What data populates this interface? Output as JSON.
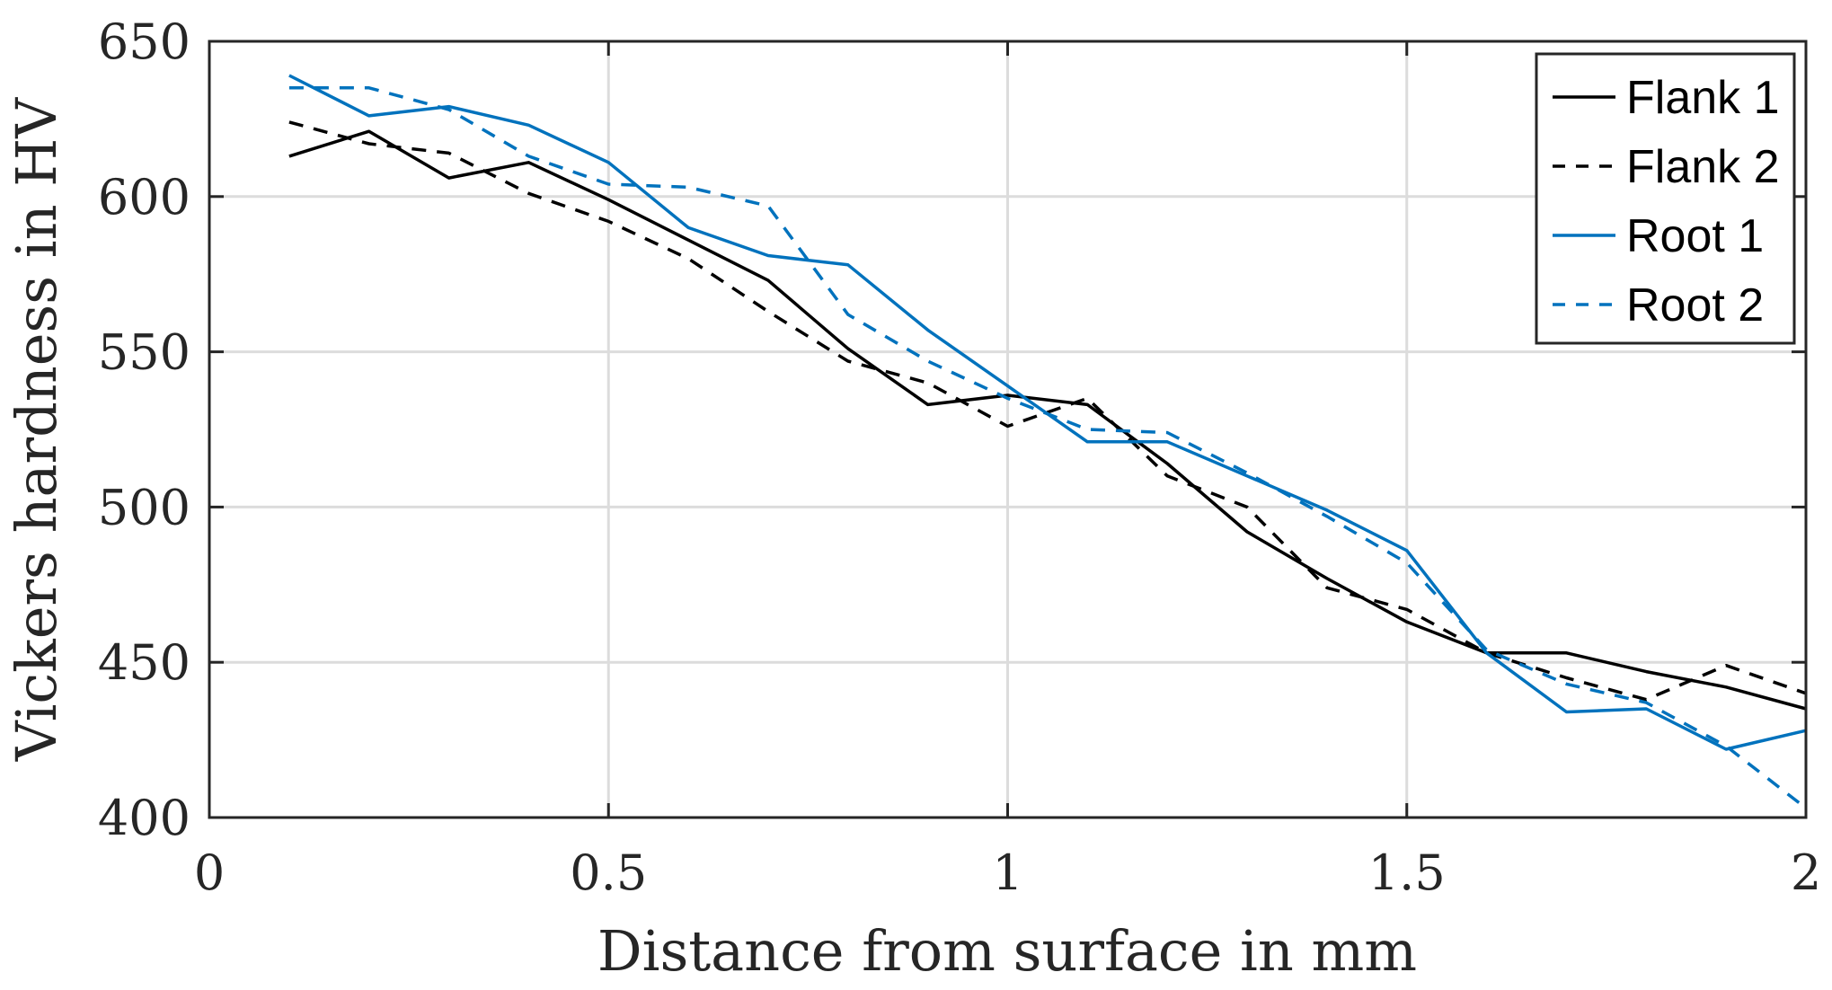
{
  "chart_data": {
    "type": "line",
    "xlabel": "Distance from surface in mm",
    "ylabel": "Vickers hardness in HV",
    "xlim": [
      0,
      2
    ],
    "ylim": [
      400,
      650
    ],
    "xticks": [
      0,
      0.5,
      1,
      1.5,
      2
    ],
    "xtick_labels": [
      "0",
      "0.5",
      "1",
      "1.5",
      "2"
    ],
    "yticks": [
      400,
      450,
      500,
      550,
      600,
      650
    ],
    "ytick_labels": [
      "400",
      "450",
      "500",
      "550",
      "600",
      "650"
    ],
    "grid": true,
    "legend_position": "top-right",
    "x": [
      0.1,
      0.2,
      0.3,
      0.4,
      0.5,
      0.6,
      0.7,
      0.8,
      0.9,
      1.0,
      1.1,
      1.2,
      1.3,
      1.4,
      1.5,
      1.6,
      1.7,
      1.8,
      1.9,
      2.0
    ],
    "series": [
      {
        "name": "Flank 1",
        "color": "#000000",
        "dash": "solid",
        "values": [
          613,
          621,
          606,
          611,
          599,
          586,
          573,
          551,
          533,
          536,
          533,
          514,
          492,
          477,
          463,
          453,
          453,
          447,
          442,
          435
        ]
      },
      {
        "name": "Flank 2",
        "color": "#000000",
        "dash": "dashed",
        "values": [
          624,
          617,
          614,
          601,
          592,
          580,
          563,
          547,
          540,
          526,
          535,
          510,
          500,
          474,
          467,
          453,
          445,
          438,
          449,
          440
        ]
      },
      {
        "name": "Root 1",
        "color": "#0072BD",
        "dash": "solid",
        "values": [
          639,
          626,
          629,
          623,
          611,
          590,
          581,
          578,
          557,
          539,
          521,
          521,
          510,
          499,
          486,
          453,
          434,
          435,
          422,
          428
        ]
      },
      {
        "name": "Root 2",
        "color": "#0072BD",
        "dash": "dashed",
        "values": [
          635,
          635,
          628,
          613,
          604,
          603,
          597,
          562,
          547,
          535,
          525,
          524,
          511,
          497,
          482,
          454,
          443,
          437,
          423,
          403
        ]
      }
    ]
  }
}
